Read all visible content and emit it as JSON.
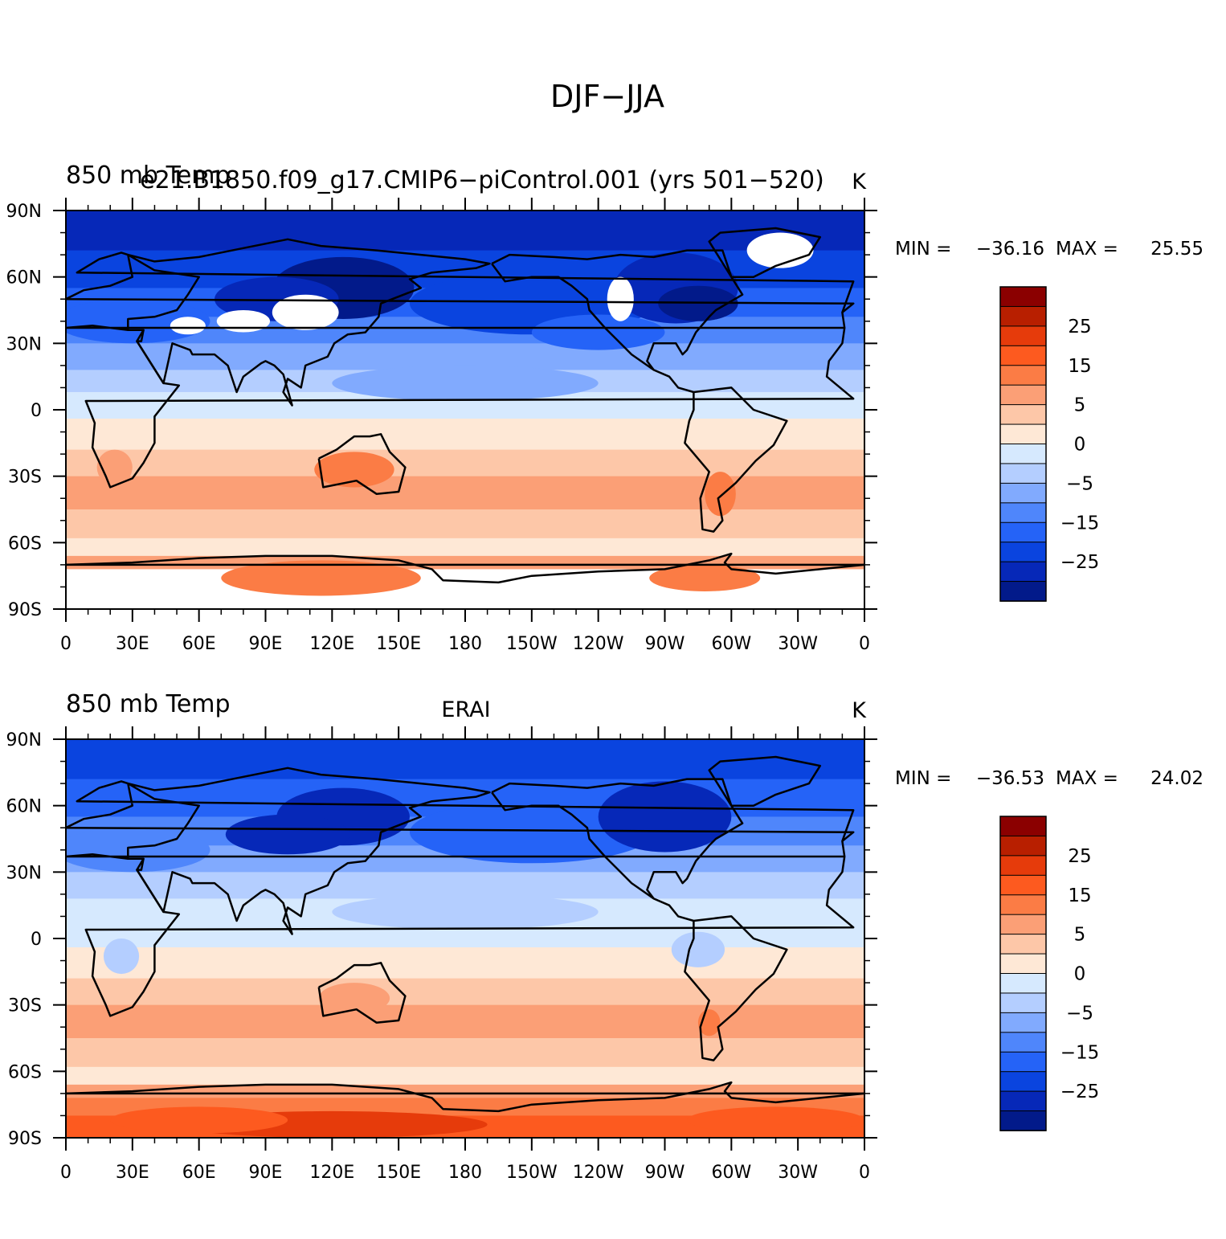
{
  "main_title": "DJF−JJA",
  "chart_data": [
    {
      "type": "heatmap",
      "panel": "top",
      "left_label": "850 mb Temp",
      "center_label": "e21.B1850.f09_g17.CMIP6−piControl.001 (yrs 501−520)",
      "right_label": "K",
      "x_ticks": [
        "0",
        "30E",
        "60E",
        "90E",
        "120E",
        "150E",
        "180",
        "150W",
        "120W",
        "90W",
        "60W",
        "30W",
        "0"
      ],
      "y_ticks": [
        "90N",
        "60N",
        "30N",
        "0",
        "30S",
        "60S",
        "90S"
      ],
      "xlim": [
        0,
        360
      ],
      "ylim": [
        -90,
        90
      ],
      "min_label": "MIN =",
      "min": "−36.16",
      "max_label": "MAX =",
      "max": "25.55",
      "colorbar_levels": [
        -30,
        -25,
        -20,
        -15,
        -10,
        -5,
        0,
        5,
        10,
        15,
        20,
        25,
        30
      ],
      "colorbar_labels": [
        "25",
        "15",
        "5",
        "0",
        "−5",
        "−15",
        "−25"
      ]
    },
    {
      "type": "heatmap",
      "panel": "bottom",
      "left_label": "850 mb Temp",
      "center_label": "ERAI",
      "right_label": "K",
      "x_ticks": [
        "0",
        "30E",
        "60E",
        "90E",
        "120E",
        "150E",
        "180",
        "150W",
        "120W",
        "90W",
        "60W",
        "30W",
        "0"
      ],
      "y_ticks": [
        "90N",
        "60N",
        "30N",
        "0",
        "30S",
        "60S",
        "90S"
      ],
      "xlim": [
        0,
        360
      ],
      "ylim": [
        -90,
        90
      ],
      "min_label": "MIN =",
      "min": "−36.53",
      "max_label": "MAX =",
      "max": "24.02",
      "colorbar_levels": [
        -30,
        -25,
        -20,
        -15,
        -10,
        -5,
        0,
        5,
        10,
        15,
        20,
        25,
        30
      ],
      "colorbar_labels": [
        "25",
        "15",
        "5",
        "0",
        "−5",
        "−15",
        "−25"
      ]
    }
  ],
  "colors": {
    "palette": [
      "#8b0000",
      "#b81f00",
      "#e63b0b",
      "#fd5a1f",
      "#fb7c45",
      "#fb9f76",
      "#fdc7a8",
      "#fee8d6",
      "#d6e9fe",
      "#b4ceff",
      "#81aafe",
      "#4f86fb",
      "#2563f7",
      "#0a44df",
      "#0628b8",
      "#021a8a"
    ],
    "missing": "#ffffff",
    "line": "#000000"
  }
}
